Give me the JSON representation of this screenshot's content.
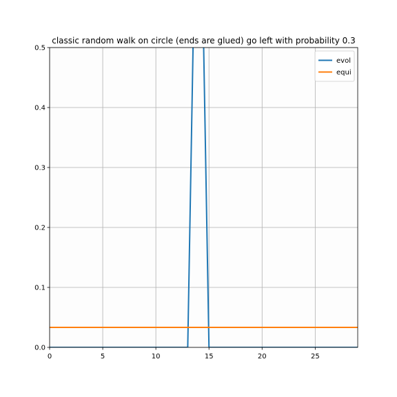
{
  "chart_data": {
    "type": "line",
    "title": "classic random walk on circle (ends are glued) go left with probability 0.3",
    "xlabel": "",
    "ylabel": "",
    "xlim": [
      0,
      29
    ],
    "ylim": [
      0,
      0.5
    ],
    "xticks": [
      0,
      5,
      10,
      15,
      20,
      25
    ],
    "xtick_labels": [
      "0",
      "5",
      "10",
      "15",
      "20",
      "25"
    ],
    "yticks": [
      0.0,
      0.1,
      0.2,
      0.3,
      0.4,
      0.5
    ],
    "ytick_labels": [
      "0.0",
      "0.1",
      "0.2",
      "0.3",
      "0.4",
      "0.5"
    ],
    "grid": true,
    "legend_position": "top-right",
    "x": [
      0,
      1,
      2,
      3,
      4,
      5,
      6,
      7,
      8,
      9,
      10,
      11,
      12,
      13,
      14,
      15,
      16,
      17,
      18,
      19,
      20,
      21,
      22,
      23,
      24,
      25,
      26,
      27,
      28,
      29
    ],
    "series": [
      {
        "name": "evol",
        "color": "#1f77b4",
        "values": [
          0,
          0,
          0,
          0,
          0,
          0,
          0,
          0,
          0,
          0,
          0,
          0,
          0,
          0,
          1,
          0,
          0,
          0,
          0,
          0,
          0,
          0,
          0,
          0,
          0,
          0,
          0,
          0,
          0,
          0
        ]
      },
      {
        "name": "equi",
        "color": "#ff7f0e",
        "values": [
          0.0333,
          0.0333,
          0.0333,
          0.0333,
          0.0333,
          0.0333,
          0.0333,
          0.0333,
          0.0333,
          0.0333,
          0.0333,
          0.0333,
          0.0333,
          0.0333,
          0.0333,
          0.0333,
          0.0333,
          0.0333,
          0.0333,
          0.0333,
          0.0333,
          0.0333,
          0.0333,
          0.0333,
          0.0333,
          0.0333,
          0.0333,
          0.0333,
          0.0333,
          0.0333
        ]
      }
    ]
  }
}
